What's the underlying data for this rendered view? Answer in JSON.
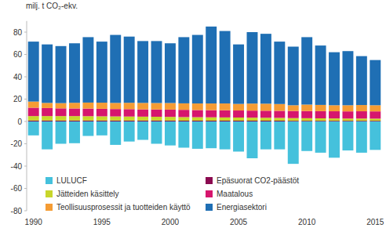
{
  "chart_data": {
    "type": "bar",
    "stacked": true,
    "grid": false,
    "legend": "bottom",
    "y_label": "milj. t CO₂-ekv.",
    "categories": [
      1990,
      null,
      null,
      null,
      null,
      1995,
      null,
      null,
      null,
      null,
      2000,
      null,
      null,
      null,
      null,
      2005,
      null,
      null,
      null,
      null,
      2010,
      null,
      null,
      null,
      null,
      2015
    ],
    "ylim": [
      -80,
      90
    ],
    "yticks": [
      -80,
      -60,
      -40,
      -20,
      0,
      20,
      40,
      60,
      80
    ],
    "series": [
      {
        "name": "LULUCF",
        "color": "#45c1dc",
        "values": [
          -12.5,
          -25,
          -20,
          -19.5,
          -13,
          -12.5,
          -21,
          -18,
          -16.5,
          -20,
          -21.5,
          -23.5,
          -24.5,
          -24,
          -25,
          -27,
          -33,
          -25,
          -25,
          -38,
          -26.5,
          -28,
          -32.5,
          -26,
          -28,
          -25.5
        ]
      },
      {
        "name": "Epäsuorat CO2-päästöt",
        "color": "#8b0a50",
        "values": [
          0.8,
          0.8,
          0.8,
          0.8,
          0.8,
          0.8,
          0.8,
          0.8,
          0.8,
          0.8,
          0.8,
          0.7,
          0.7,
          0.7,
          0.7,
          0.7,
          0.7,
          0.7,
          0.7,
          0.6,
          0.6,
          0.6,
          0.6,
          0.6,
          0.6,
          0.6
        ]
      },
      {
        "name": "Jätteiden käsittely",
        "color": "#c8d62b",
        "values": [
          4.0,
          4.0,
          4.0,
          4.0,
          3.9,
          3.8,
          3.7,
          3.6,
          3.5,
          3.4,
          3.3,
          3.2,
          3.1,
          3.0,
          2.9,
          2.8,
          2.7,
          2.6,
          2.5,
          2.4,
          2.3,
          2.2,
          2.1,
          2.0,
          2.0,
          1.9
        ]
      },
      {
        "name": "Maatalous",
        "color": "#d6166d",
        "values": [
          7.5,
          7.2,
          6.9,
          6.8,
          6.8,
          6.7,
          6.6,
          6.6,
          6.5,
          6.5,
          6.5,
          6.5,
          6.4,
          6.4,
          6.4,
          6.3,
          6.3,
          6.3,
          6.3,
          6.4,
          6.4,
          6.4,
          6.4,
          6.4,
          6.5,
          6.5
        ]
      },
      {
        "name": "Teollisuusprosessit ja tuotteiden käyttö",
        "color": "#f59c34",
        "values": [
          5.5,
          4.6,
          4.7,
          5.1,
          5.4,
          5.5,
          5.5,
          5.7,
          5.8,
          5.8,
          5.9,
          5.8,
          5.9,
          6.0,
          6.1,
          5.9,
          6.3,
          6.3,
          6.1,
          5.1,
          5.8,
          5.6,
          5.4,
          5.5,
          5.6,
          5.5
        ]
      },
      {
        "name": "Energiasektori",
        "color": "#1f6fb4",
        "values": [
          53.7,
          52.4,
          51.1,
          53.3,
          58.6,
          54.7,
          60.9,
          59.3,
          55.4,
          55.5,
          53.5,
          59.3,
          61.4,
          68.9,
          64.9,
          53.3,
          64.0,
          62.6,
          55.9,
          52.5,
          60.4,
          53.2,
          47.5,
          48.5,
          43.8,
          40.5
        ]
      }
    ]
  }
}
